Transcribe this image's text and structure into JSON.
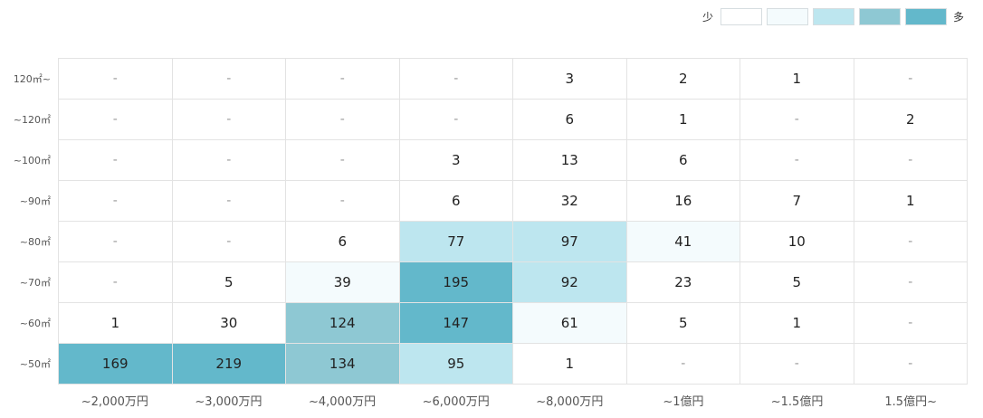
{
  "legend": {
    "low_label": "少",
    "high_label": "多",
    "colors": [
      "#ffffff",
      "#f4fbfd",
      "#bde6ef",
      "#8ec8d3",
      "#63b8cb"
    ]
  },
  "chart_data": {
    "type": "heatmap",
    "x_categories": [
      "~2,000万円",
      "~3,000万円",
      "~4,000万円",
      "~6,000万円",
      "~8,000万円",
      "~1億円",
      "~1.5億円",
      "1.5億円~"
    ],
    "y_categories": [
      "120㎡~",
      "~120㎡",
      "~100㎡",
      "~90㎡",
      "~80㎡",
      "~70㎡",
      "~60㎡",
      "~50㎡"
    ],
    "values": [
      [
        "-",
        "-",
        "-",
        "-",
        "3",
        "2",
        "1",
        "-"
      ],
      [
        "-",
        "-",
        "-",
        "-",
        "6",
        "1",
        "-",
        "2"
      ],
      [
        "-",
        "-",
        "-",
        "3",
        "13",
        "6",
        "-",
        "-"
      ],
      [
        "-",
        "-",
        "-",
        "6",
        "32",
        "16",
        "7",
        "1"
      ],
      [
        "-",
        "-",
        "6",
        "77",
        "97",
        "41",
        "10",
        "-"
      ],
      [
        "-",
        "5",
        "39",
        "195",
        "92",
        "23",
        "5",
        "-"
      ],
      [
        "1",
        "30",
        "124",
        "147",
        "61",
        "5",
        "1",
        "-"
      ],
      [
        "169",
        "219",
        "134",
        "95",
        "1",
        "-",
        "-",
        "-"
      ]
    ],
    "color_levels": [
      [
        0,
        0,
        0,
        0,
        0,
        0,
        0,
        0
      ],
      [
        0,
        0,
        0,
        0,
        0,
        0,
        0,
        0
      ],
      [
        0,
        0,
        0,
        0,
        0,
        0,
        0,
        0
      ],
      [
        0,
        0,
        0,
        0,
        0,
        0,
        0,
        0
      ],
      [
        0,
        0,
        0,
        2,
        2,
        1,
        0,
        0
      ],
      [
        0,
        0,
        1,
        4,
        2,
        0,
        0,
        0
      ],
      [
        0,
        0,
        3,
        4,
        1,
        0,
        0,
        0
      ],
      [
        4,
        4,
        3,
        2,
        0,
        0,
        0,
        0
      ]
    ]
  }
}
